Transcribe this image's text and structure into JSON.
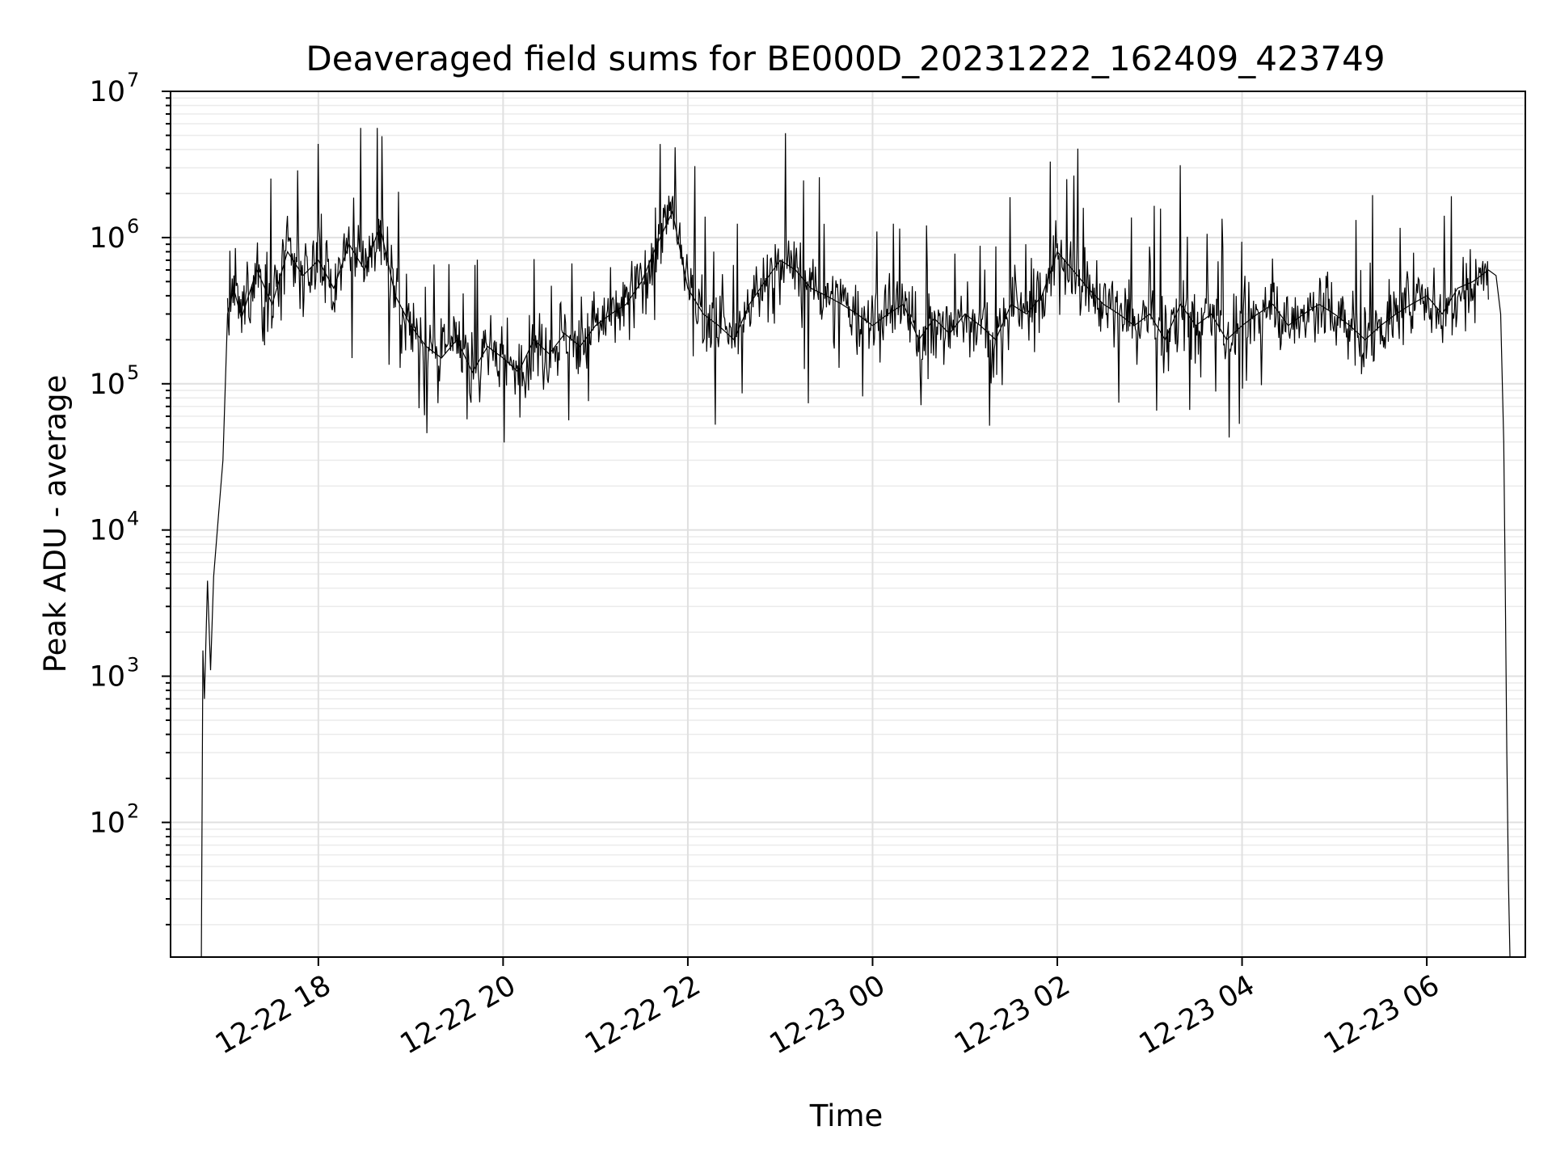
{
  "chart_data": {
    "type": "line",
    "title": "Deaveraged field sums for BE000D_20231222_162409_423749",
    "xlabel": "Time",
    "ylabel": "Peak ADU - average",
    "yscale": "log",
    "xlim": [
      "2023-12-22 16:24",
      "2023-12-23 07:04"
    ],
    "ylim": [
      12,
      10000000
    ],
    "grid": true,
    "line_color": "#000000",
    "x_ticks": [
      {
        "value": "2023-12-22 18:00",
        "label": "12-22 18"
      },
      {
        "value": "2023-12-22 20:00",
        "label": "12-22 20"
      },
      {
        "value": "2023-12-22 22:00",
        "label": "12-22 22"
      },
      {
        "value": "2023-12-23 00:00",
        "label": "12-23 00"
      },
      {
        "value": "2023-12-23 02:00",
        "label": "12-23 02"
      },
      {
        "value": "2023-12-23 04:00",
        "label": "12-23 04"
      },
      {
        "value": "2023-12-23 06:00",
        "label": "12-23 06"
      }
    ],
    "y_ticks": [
      {
        "value": 100,
        "base": "10",
        "exp": "2"
      },
      {
        "value": 1000,
        "base": "10",
        "exp": "3"
      },
      {
        "value": 10000,
        "base": "10",
        "exp": "4"
      },
      {
        "value": 100000,
        "base": "10",
        "exp": "5"
      },
      {
        "value": 1000000,
        "base": "10",
        "exp": "6"
      },
      {
        "value": 10000000,
        "base": "10",
        "exp": "7"
      }
    ],
    "series": [
      {
        "x": [
          "2023-12-22 16:44",
          "2023-12-22 16:45",
          "2023-12-22 16:46",
          "2023-12-22 16:48",
          "2023-12-22 16:50",
          "2023-12-22 16:52",
          "2023-12-22 16:55",
          "2023-12-22 16:58",
          "2023-12-22 17:01",
          "2023-12-22 17:05",
          "2023-12-22 17:10",
          "2023-12-22 17:20",
          "2023-12-22 17:30",
          "2023-12-22 17:40",
          "2023-12-22 17:50",
          "2023-12-22 18:00",
          "2023-12-22 18:10",
          "2023-12-22 18:20",
          "2023-12-22 18:30",
          "2023-12-22 18:40",
          "2023-12-22 18:50",
          "2023-12-22 19:00",
          "2023-12-22 19:10",
          "2023-12-22 19:20",
          "2023-12-22 19:30",
          "2023-12-22 19:40",
          "2023-12-22 19:50",
          "2023-12-22 20:00",
          "2023-12-22 20:10",
          "2023-12-22 20:20",
          "2023-12-22 20:30",
          "2023-12-22 20:40",
          "2023-12-22 20:50",
          "2023-12-22 21:00",
          "2023-12-22 21:10",
          "2023-12-22 21:20",
          "2023-12-22 21:30",
          "2023-12-22 21:40",
          "2023-12-22 21:50",
          "2023-12-22 22:00",
          "2023-12-22 22:10",
          "2023-12-22 22:20",
          "2023-12-22 22:30",
          "2023-12-22 22:40",
          "2023-12-22 22:50",
          "2023-12-22 23:00",
          "2023-12-22 23:10",
          "2023-12-22 23:20",
          "2023-12-22 23:30",
          "2023-12-22 23:40",
          "2023-12-22 23:50",
          "2023-12-23 00:00",
          "2023-12-23 00:10",
          "2023-12-23 00:20",
          "2023-12-23 00:30",
          "2023-12-23 00:40",
          "2023-12-23 00:50",
          "2023-12-23 01:00",
          "2023-12-23 01:10",
          "2023-12-23 01:20",
          "2023-12-23 01:30",
          "2023-12-23 01:40",
          "2023-12-23 01:50",
          "2023-12-23 02:00",
          "2023-12-23 02:10",
          "2023-12-23 02:20",
          "2023-12-23 02:30",
          "2023-12-23 02:40",
          "2023-12-23 02:50",
          "2023-12-23 03:00",
          "2023-12-23 03:10",
          "2023-12-23 03:20",
          "2023-12-23 03:30",
          "2023-12-23 03:40",
          "2023-12-23 03:50",
          "2023-12-23 04:00",
          "2023-12-23 04:10",
          "2023-12-23 04:20",
          "2023-12-23 04:30",
          "2023-12-23 04:40",
          "2023-12-23 04:50",
          "2023-12-23 05:00",
          "2023-12-23 05:10",
          "2023-12-23 05:20",
          "2023-12-23 05:30",
          "2023-12-23 05:40",
          "2023-12-23 05:50",
          "2023-12-23 06:00",
          "2023-12-23 06:10",
          "2023-12-23 06:20",
          "2023-12-23 06:30",
          "2023-12-23 06:40",
          "2023-12-23 06:45",
          "2023-12-23 06:48",
          "2023-12-23 06:50",
          "2023-12-23 06:51",
          "2023-12-23 06:52",
          "2023-12-23 06:53",
          "2023-12-23 06:54"
        ],
        "y": [
          12,
          1500,
          700,
          4500,
          1100,
          4800,
          12000,
          30000,
          300000,
          450000,
          280000,
          600000,
          350000,
          800000,
          550000,
          700000,
          450000,
          900000,
          600000,
          1200000,
          400000,
          250000,
          180000,
          150000,
          200000,
          120000,
          180000,
          150000,
          120000,
          200000,
          160000,
          220000,
          180000,
          250000,
          300000,
          350000,
          500000,
          900000,
          1500000,
          450000,
          300000,
          250000,
          200000,
          350000,
          500000,
          700000,
          600000,
          450000,
          400000,
          350000,
          300000,
          250000,
          300000,
          350000,
          200000,
          280000,
          220000,
          300000,
          250000,
          200000,
          350000,
          300000,
          400000,
          800000,
          600000,
          450000,
          350000,
          300000,
          250000,
          300000,
          200000,
          350000,
          250000,
          300000,
          200000,
          250000,
          300000,
          350000,
          250000,
          300000,
          350000,
          300000,
          250000,
          200000,
          250000,
          300000,
          350000,
          400000,
          300000,
          450000,
          500000,
          600000,
          550000,
          300000,
          40000,
          4000,
          300,
          40,
          12
        ]
      }
    ]
  }
}
